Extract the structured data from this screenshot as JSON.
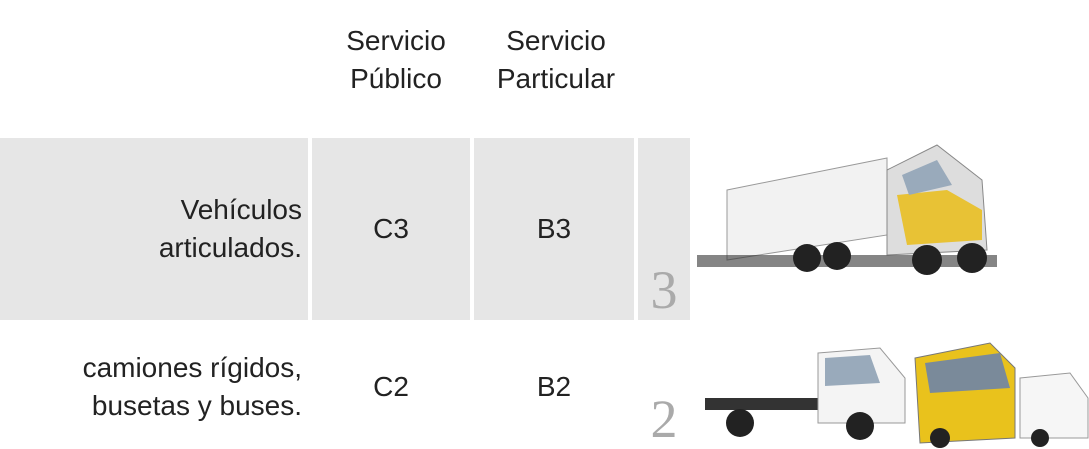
{
  "table": {
    "header": [
      "Servicio Público",
      "Servicio Particular"
    ],
    "rows": [
      {
        "label": [
          "Vehículos",
          "articulados."
        ],
        "publico": "C3",
        "particular": "B3",
        "number": "3"
      },
      {
        "label": [
          "camiones rígidos,",
          "busetas y buses."
        ],
        "publico": "C2",
        "particular": "B2",
        "number": "2"
      }
    ]
  }
}
